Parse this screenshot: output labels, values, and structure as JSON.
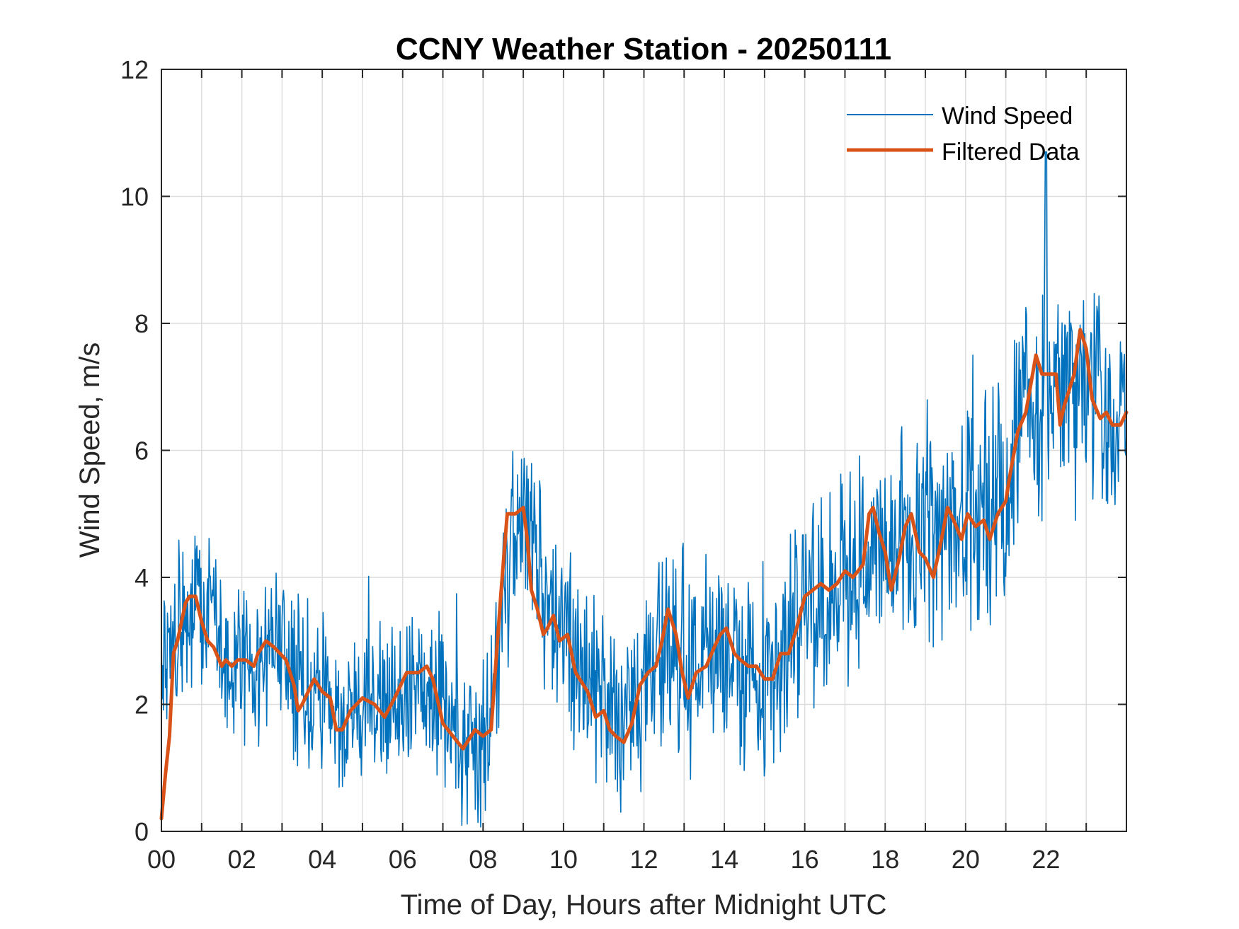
{
  "chart_data": {
    "type": "line",
    "title": "CCNY Weather Station - 20250111",
    "xlabel": "Time of Day, Hours after Midnight UTC",
    "ylabel": "Wind Speed, m/s",
    "xlim": [
      0,
      24
    ],
    "ylim": [
      0,
      12
    ],
    "grid": true,
    "legend_position": "top-right",
    "x_ticks": [
      0,
      2,
      4,
      6,
      8,
      10,
      12,
      14,
      16,
      18,
      20,
      22
    ],
    "x_tick_labels": [
      "00",
      "02",
      "04",
      "06",
      "08",
      "10",
      "12",
      "14",
      "16",
      "18",
      "20",
      "22"
    ],
    "y_ticks": [
      0,
      2,
      4,
      6,
      8,
      10,
      12
    ],
    "y_tick_labels": [
      "0",
      "2",
      "4",
      "6",
      "8",
      "10",
      "12"
    ],
    "series": [
      {
        "name": "Wind Speed",
        "color": "#0072BD",
        "style": "thin",
        "approx_profile_x": [
          0,
          0.3,
          0.7,
          1.0,
          1.5,
          2.0,
          2.5,
          3.0,
          3.5,
          4.0,
          4.5,
          5.0,
          5.5,
          6.0,
          6.5,
          7.0,
          7.5,
          8.0,
          8.3,
          8.6,
          9.0,
          9.5,
          10.0,
          10.5,
          11.0,
          11.5,
          12.0,
          12.5,
          13.0,
          13.5,
          14.0,
          14.5,
          15.0,
          15.5,
          16.0,
          16.5,
          17.0,
          17.5,
          18.0,
          18.5,
          19.0,
          19.5,
          20.0,
          20.5,
          21.0,
          21.5,
          22.0,
          22.5,
          23.0,
          23.5,
          24.0
        ],
        "approx_profile_y": [
          2.8,
          3.0,
          3.4,
          3.5,
          3.0,
          2.7,
          2.6,
          2.8,
          2.3,
          2.2,
          1.7,
          2.0,
          2.1,
          2.2,
          2.5,
          2.2,
          1.5,
          1.4,
          2.2,
          4.2,
          5.0,
          3.6,
          3.0,
          2.3,
          1.8,
          1.6,
          2.3,
          2.9,
          2.5,
          2.6,
          2.9,
          2.6,
          2.5,
          2.9,
          3.7,
          3.9,
          4.0,
          4.3,
          4.2,
          4.6,
          4.4,
          4.8,
          4.8,
          5.0,
          5.5,
          6.6,
          7.0,
          7.0,
          7.1,
          6.6,
          6.5
        ],
        "noise_amplitude_approx": [
          1.0,
          1.6
        ],
        "max_approx": 10.7
      },
      {
        "name": "Filtered Data",
        "color": "#D95319",
        "style": "thick",
        "x": [
          0,
          0.1,
          0.2,
          0.3,
          0.4,
          0.5,
          0.6,
          0.7,
          0.85,
          1.0,
          1.15,
          1.3,
          1.5,
          1.6,
          1.75,
          1.9,
          2.1,
          2.3,
          2.4,
          2.6,
          2.8,
          3.1,
          3.3,
          3.4,
          3.5,
          3.65,
          3.8,
          4.0,
          4.2,
          4.35,
          4.5,
          4.7,
          5.0,
          5.3,
          5.55,
          5.8,
          6.1,
          6.4,
          6.6,
          6.75,
          7.0,
          7.25,
          7.5,
          7.8,
          8.0,
          8.2,
          8.3,
          8.45,
          8.6,
          8.8,
          9.0,
          9.1,
          9.2,
          9.35,
          9.5,
          9.6,
          9.75,
          9.9,
          10.1,
          10.3,
          10.6,
          10.8,
          11.0,
          11.15,
          11.3,
          11.5,
          11.7,
          11.9,
          12.1,
          12.3,
          12.45,
          12.6,
          12.8,
          12.95,
          13.1,
          13.3,
          13.55,
          13.75,
          13.9,
          14.05,
          14.25,
          14.4,
          14.6,
          14.8,
          15.0,
          15.2,
          15.4,
          15.6,
          15.8,
          16.0,
          16.2,
          16.4,
          16.6,
          16.8,
          17.0,
          17.2,
          17.45,
          17.6,
          17.7,
          17.85,
          18.0,
          18.15,
          18.35,
          18.5,
          18.65,
          18.85,
          19.0,
          19.2,
          19.4,
          19.55,
          19.7,
          19.9,
          20.05,
          20.25,
          20.45,
          20.6,
          20.8,
          21.0,
          21.1,
          21.3,
          21.5,
          21.75,
          21.9,
          22.0,
          22.25,
          22.35,
          22.45,
          22.7,
          22.85,
          23.0,
          23.15,
          23.35,
          23.5,
          23.65,
          23.85,
          24.0
        ],
        "values": [
          0.2,
          0.9,
          1.5,
          2.8,
          3.0,
          3.3,
          3.6,
          3.7,
          3.7,
          3.3,
          3.0,
          2.9,
          2.6,
          2.7,
          2.6,
          2.7,
          2.7,
          2.6,
          2.8,
          3.0,
          2.9,
          2.7,
          2.3,
          1.9,
          2.0,
          2.2,
          2.4,
          2.2,
          2.1,
          1.6,
          1.6,
          1.9,
          2.1,
          2.0,
          1.8,
          2.1,
          2.5,
          2.5,
          2.6,
          2.4,
          1.7,
          1.5,
          1.3,
          1.6,
          1.5,
          1.6,
          2.5,
          3.8,
          5.0,
          5.0,
          5.1,
          4.6,
          3.8,
          3.5,
          3.1,
          3.2,
          3.4,
          3.0,
          3.1,
          2.5,
          2.2,
          1.8,
          1.9,
          1.6,
          1.5,
          1.4,
          1.7,
          2.3,
          2.5,
          2.6,
          3.0,
          3.5,
          3.1,
          2.5,
          2.1,
          2.5,
          2.6,
          2.9,
          3.1,
          3.2,
          2.8,
          2.7,
          2.6,
          2.6,
          2.4,
          2.4,
          2.8,
          2.8,
          3.2,
          3.7,
          3.8,
          3.9,
          3.8,
          3.9,
          4.1,
          4.0,
          4.2,
          5.0,
          5.1,
          4.7,
          4.4,
          3.8,
          4.3,
          4.8,
          5.0,
          4.4,
          4.3,
          4.0,
          4.6,
          5.1,
          4.9,
          4.6,
          5.0,
          4.8,
          4.9,
          4.6,
          5.0,
          5.2,
          5.6,
          6.3,
          6.6,
          7.5,
          7.2,
          7.2,
          7.2,
          6.4,
          6.7,
          7.2,
          7.9,
          7.6,
          6.8,
          6.5,
          6.6,
          6.4,
          6.4,
          6.6
        ]
      }
    ]
  }
}
